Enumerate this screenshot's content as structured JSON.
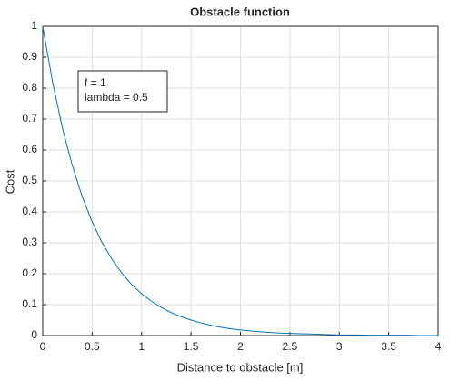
{
  "chart_data": {
    "type": "line",
    "title": "Obstacle function",
    "xlabel": "Distance to obstacle [m]",
    "ylabel": "Cost",
    "annotations": [
      "f = 1",
      "lambda = 0.5"
    ],
    "x": [
      0,
      0.1,
      0.2,
      0.3,
      0.4,
      0.5,
      0.6,
      0.7,
      0.8,
      0.9,
      1,
      1.1,
      1.2,
      1.3,
      1.4,
      1.5,
      1.6,
      1.7,
      1.8,
      1.9,
      2,
      2.1,
      2.2,
      2.3,
      2.4,
      2.5,
      2.6,
      2.7,
      2.8,
      2.9,
      3,
      3.1,
      3.2,
      3.3,
      3.4,
      3.5,
      3.6,
      3.7,
      3.8,
      3.9,
      4
    ],
    "series": [
      {
        "color": "#0072bd",
        "values": [
          1,
          0.819,
          0.67,
          0.549,
          0.449,
          0.368,
          0.301,
          0.247,
          0.202,
          0.165,
          0.135,
          0.111,
          0.091,
          0.074,
          0.061,
          0.05,
          0.041,
          0.033,
          0.027,
          0.022,
          0.018,
          0.015,
          0.012,
          0.01,
          0.008,
          0.007,
          0.006,
          0.005,
          0.004,
          0.003,
          0.002,
          0.002,
          0.002,
          0.001,
          0.001,
          0.001,
          0.001,
          0.001,
          0.0,
          0.0,
          0.0
        ]
      }
    ],
    "xlim": [
      0,
      4
    ],
    "xticks": [
      0,
      0.5,
      1,
      1.5,
      2,
      2.5,
      3,
      3.5,
      4
    ],
    "ylim": [
      0,
      1
    ],
    "yticks": [
      0,
      0.1,
      0.2,
      0.3,
      0.4,
      0.5,
      0.6,
      0.7,
      0.8,
      0.9,
      1
    ],
    "grid": true
  }
}
